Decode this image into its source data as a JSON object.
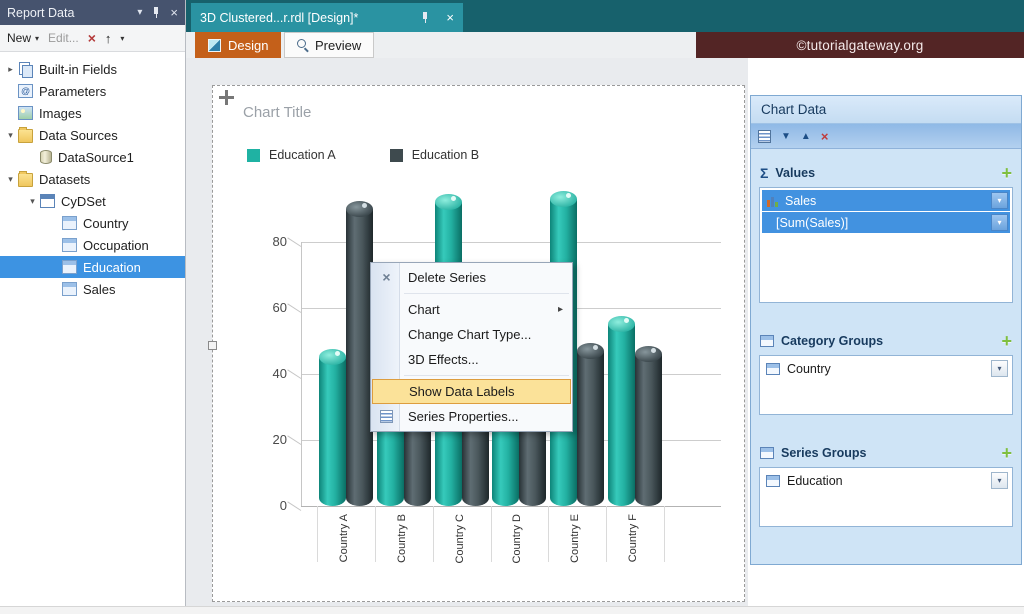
{
  "icons": {
    "caret_down": "▾",
    "close": "×",
    "up_arrow": "↑",
    "red_x": "×",
    "arrow_down": "▼",
    "arrow_up": "▲",
    "submenu_arrow": "▸",
    "sigma": "Σ",
    "plus": "+",
    "menu_delete": "×",
    "expander_collapsed": "▸",
    "expander_expanded": "▾"
  },
  "window": {
    "left_panel_title": "Report Data",
    "document_tab": "3D Clustered...r.rdl [Design]*",
    "design_tab": "Design",
    "preview_tab": "Preview",
    "brand": "©tutorialgateway.org"
  },
  "report_data": {
    "toolbar": {
      "new_label": "New",
      "edit_label": "Edit..."
    },
    "tree": [
      {
        "label": "Built-in Fields",
        "level": 0,
        "expander": "collapsed",
        "icon": "builtin-fields"
      },
      {
        "label": "Parameters",
        "level": 0,
        "expander": "none",
        "icon": "parameters"
      },
      {
        "label": "Images",
        "level": 0,
        "expander": "none",
        "icon": "images"
      },
      {
        "label": "Data Sources",
        "level": 0,
        "expander": "expanded",
        "icon": "folder"
      },
      {
        "label": "DataSource1",
        "level": 1,
        "expander": "none",
        "icon": "datasource"
      },
      {
        "label": "Datasets",
        "level": 0,
        "expander": "expanded",
        "icon": "folder"
      },
      {
        "label": "CyDSet",
        "level": 1,
        "expander": "expanded",
        "icon": "dataset"
      },
      {
        "label": "Country",
        "level": 2,
        "expander": "none",
        "icon": "field"
      },
      {
        "label": "Occupation",
        "level": 2,
        "expander": "none",
        "icon": "field"
      },
      {
        "label": "Education",
        "level": 2,
        "expander": "none",
        "icon": "field",
        "selected": true
      },
      {
        "label": "Sales",
        "level": 2,
        "expander": "none",
        "icon": "field"
      }
    ]
  },
  "context_menu": {
    "items": [
      {
        "label": "Delete Series",
        "icon": "delete"
      },
      {
        "separator": true
      },
      {
        "label": "Chart",
        "submenu": true
      },
      {
        "label": "Change Chart Type..."
      },
      {
        "label": "3D Effects..."
      },
      {
        "separator": true
      },
      {
        "label": "Show Data Labels",
        "highlighted": true
      },
      {
        "label": "Series Properties...",
        "icon": "properties"
      }
    ]
  },
  "chart_data_panel": {
    "title": "Chart Data",
    "values_label": "Values",
    "category_groups_label": "Category Groups",
    "series_groups_label": "Series Groups",
    "values": [
      {
        "label": "Sales",
        "selected": true,
        "icon": "mini-chart"
      },
      {
        "label": "[Sum(Sales)]",
        "selected": true,
        "indent": true
      }
    ],
    "category_groups": [
      {
        "label": "Country",
        "icon": "mini-table"
      }
    ],
    "series_groups": [
      {
        "label": "Education",
        "icon": "mini-table"
      }
    ]
  },
  "chart_data": {
    "type": "bar",
    "subtype": "3d-clustered-cylinder",
    "title": "Chart Title",
    "categories": [
      "Country A",
      "Country B",
      "Country C",
      "Country D",
      "Country E",
      "Country F"
    ],
    "series": [
      {
        "name": "Education A",
        "color": "#1fb2a3",
        "values": [
          45,
          62,
          92,
          45,
          93,
          55
        ]
      },
      {
        "name": "Education B",
        "color": "#3e4a4e",
        "values": [
          90,
          50,
          46,
          52,
          47,
          46
        ]
      }
    ],
    "ylim": [
      0,
      100
    ],
    "yticks": [
      0,
      20,
      40,
      60,
      80
    ],
    "legend_position": "top-left",
    "grid": true
  }
}
